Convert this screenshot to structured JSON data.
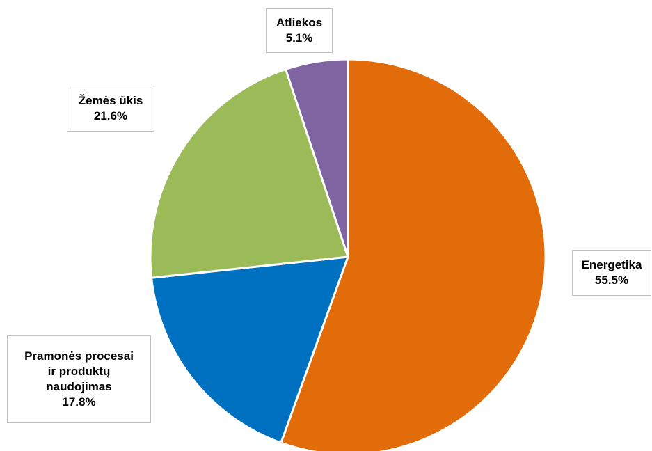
{
  "chart_data": {
    "type": "pie",
    "start_angle_deg": 0,
    "direction": "clockwise",
    "slices": [
      {
        "name": "Energetika",
        "value": 55.5,
        "value_label": "55.5%",
        "color": "#E36C0A"
      },
      {
        "name": "Pramonės procesai ir produktų naudojimas",
        "name_lines": [
          "Pramonės procesai",
          "ir produktų",
          "naudojimas"
        ],
        "value": 17.8,
        "value_label": "17.8%",
        "color": "#0070C0"
      },
      {
        "name": "Žemės ūkis",
        "value": 21.6,
        "value_label": "21.6%",
        "color": "#9BBB59"
      },
      {
        "name": "Atliekos",
        "value": 5.1,
        "value_label": "5.1%",
        "color": "#8064A2"
      }
    ]
  }
}
